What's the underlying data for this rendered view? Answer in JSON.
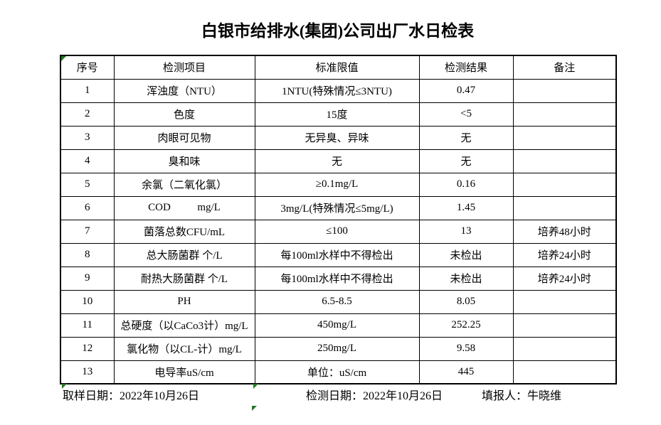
{
  "title": "白银市给排水(集团)公司出厂水日检表",
  "table": {
    "headers": [
      "序号",
      "检测项目",
      "标准限值",
      "检测结果",
      "备注"
    ],
    "rows": [
      [
        "1",
        "浑浊度（NTU）",
        "1NTU(特殊情况≤3NTU)",
        "0.47",
        ""
      ],
      [
        "2",
        "色度",
        "15度",
        "<5",
        ""
      ],
      [
        "3",
        "肉眼可见物",
        "无异臭、异味",
        "无",
        ""
      ],
      [
        "4",
        "臭和味",
        "无",
        "无",
        ""
      ],
      [
        "5",
        "余氯（二氧化氯）",
        "≥0.1mg/L",
        "0.16",
        ""
      ],
      [
        "6",
        "COD          mg/L",
        "3mg/L(特殊情况≤5mg/L)",
        "1.45",
        ""
      ],
      [
        "7",
        "菌落总数CFU/mL",
        "≤100",
        "13",
        "培养48小时"
      ],
      [
        "8",
        "总大肠菌群 个/L",
        "每100ml水样中不得检出",
        "未检出",
        "培养24小时"
      ],
      [
        "9",
        "耐热大肠菌群 个/L",
        "每100ml水样中不得检出",
        "未检出",
        "培养24小时"
      ],
      [
        "10",
        "PH",
        "6.5-8.5",
        "8.05",
        ""
      ],
      [
        "11",
        "总硬度（以CaCo3计）mg/L",
        "450mg/L",
        "252.25",
        ""
      ],
      [
        "12",
        "氯化物（以CL-计）mg/L",
        "250mg/L",
        "9.58",
        ""
      ],
      [
        "13",
        "电导率uS/cm",
        "单位：uS/cm",
        "445",
        ""
      ]
    ]
  },
  "footer": {
    "sampling_date": "取样日期：2022年10月26日",
    "test_date": "检测日期：2022年10月26日",
    "reporter": "填报人：牛晓维"
  },
  "icons": {
    "cell_marker": "excel-cell-error-indicator-triangle"
  },
  "colors": {
    "marker_green": "#1f7a1f",
    "border": "#000000",
    "background": "#ffffff",
    "text": "#000000"
  }
}
